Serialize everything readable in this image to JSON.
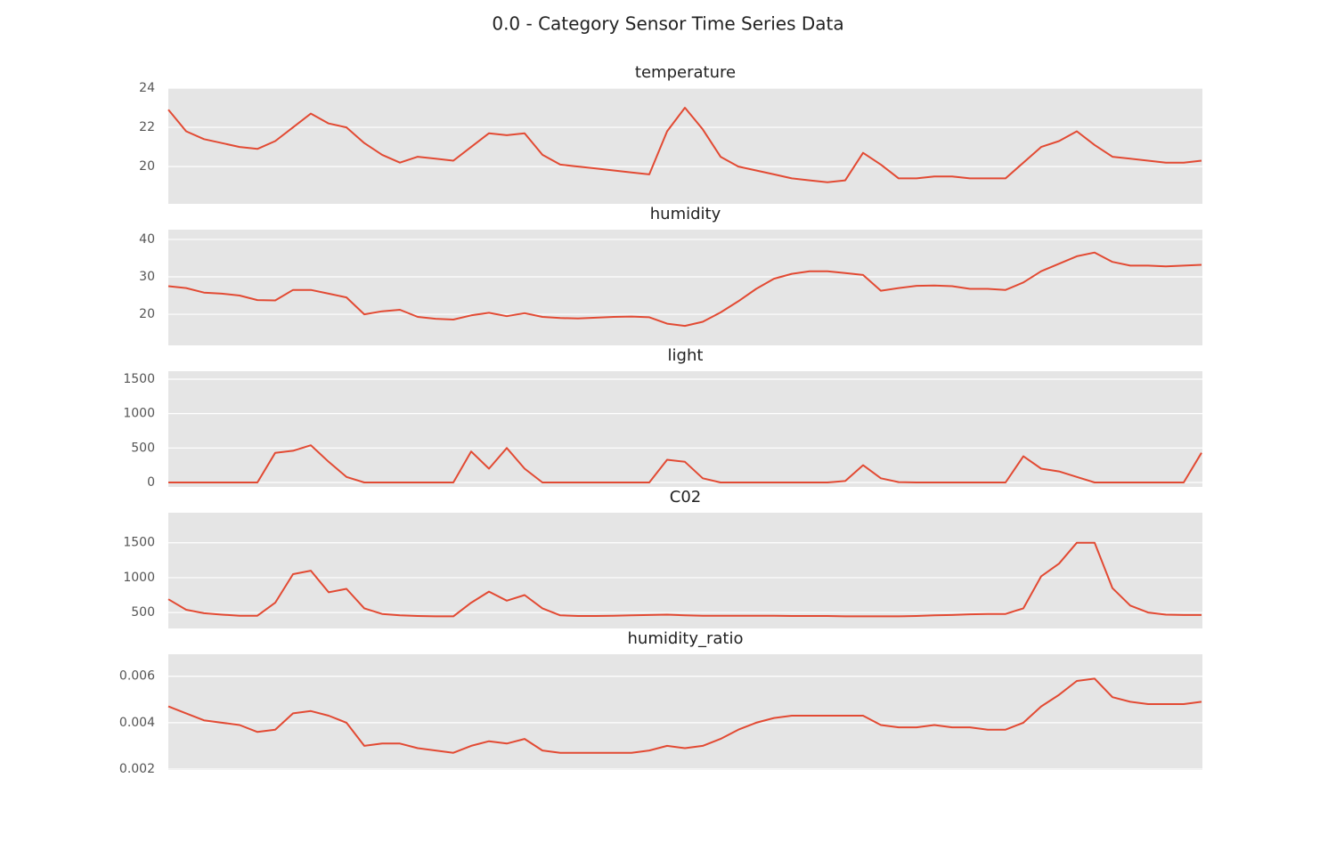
{
  "title": "0.0 - Category Sensor Time Series Data",
  "chart_data": [
    {
      "type": "line",
      "title": "temperature",
      "color": "#e24a33",
      "grid": true,
      "ylim": [
        18.1,
        24.0
      ],
      "yticks": [
        20,
        22,
        24
      ],
      "values": [
        22.9,
        21.8,
        21.4,
        21.2,
        21.0,
        20.9,
        21.3,
        22.0,
        22.7,
        22.2,
        22.0,
        21.2,
        20.6,
        20.2,
        20.5,
        20.4,
        20.3,
        21.0,
        21.7,
        21.6,
        21.7,
        20.6,
        20.1,
        20.0,
        19.9,
        19.8,
        19.7,
        19.6,
        21.8,
        23.0,
        21.9,
        20.5,
        20.0,
        19.8,
        19.6,
        19.4,
        19.3,
        19.2,
        19.3,
        20.7,
        20.1,
        19.4,
        19.4,
        19.5,
        19.5,
        19.4,
        19.4,
        19.4,
        20.2,
        21.0,
        21.3,
        21.8,
        21.1,
        20.5,
        20.4,
        20.3,
        20.2,
        20.2,
        20.3
      ]
    },
    {
      "type": "line",
      "title": "humidity",
      "color": "#e24a33",
      "grid": true,
      "ylim": [
        11.7,
        42.6
      ],
      "yticks": [
        20,
        30,
        40
      ],
      "values": [
        27.5,
        27.0,
        25.8,
        25.5,
        25.0,
        23.8,
        23.7,
        26.5,
        26.5,
        25.5,
        24.5,
        20.0,
        20.8,
        21.2,
        19.3,
        18.8,
        18.6,
        19.7,
        20.4,
        19.5,
        20.3,
        19.3,
        19.0,
        18.9,
        19.1,
        19.3,
        19.4,
        19.2,
        17.5,
        16.9,
        18.0,
        20.5,
        23.5,
        26.8,
        29.5,
        30.8,
        31.5,
        31.5,
        31.0,
        30.5,
        26.3,
        27.0,
        27.6,
        27.7,
        27.5,
        26.8,
        26.8,
        26.5,
        28.5,
        31.5,
        33.5,
        35.5,
        36.5,
        34.0,
        33.0,
        33.0,
        32.8,
        33.0,
        33.2
      ]
    },
    {
      "type": "line",
      "title": "light",
      "color": "#e24a33",
      "grid": true,
      "ylim": [
        -65,
        1616
      ],
      "yticks": [
        0,
        500,
        1000,
        1500
      ],
      "values": [
        0,
        0,
        0,
        0,
        0,
        0,
        430,
        460,
        540,
        300,
        80,
        0,
        0,
        0,
        0,
        0,
        0,
        450,
        200,
        500,
        200,
        0,
        0,
        0,
        0,
        0,
        0,
        0,
        330,
        300,
        60,
        0,
        0,
        0,
        0,
        0,
        0,
        0,
        20,
        250,
        60,
        5,
        0,
        0,
        0,
        0,
        0,
        0,
        380,
        200,
        160,
        80,
        0,
        0,
        0,
        0,
        0,
        0,
        430
      ]
    },
    {
      "type": "line",
      "title": "C02",
      "color": "#e24a33",
      "grid": true,
      "ylim": [
        272,
        1930
      ],
      "yticks": [
        500,
        1000,
        1500
      ],
      "values": [
        690,
        540,
        490,
        470,
        455,
        455,
        640,
        1050,
        1100,
        790,
        840,
        560,
        480,
        460,
        450,
        445,
        445,
        640,
        800,
        670,
        750,
        560,
        460,
        450,
        450,
        455,
        460,
        465,
        470,
        460,
        455,
        455,
        455,
        455,
        455,
        450,
        450,
        450,
        445,
        445,
        445,
        445,
        450,
        460,
        465,
        475,
        480,
        480,
        560,
        1020,
        1200,
        1500,
        1500,
        850,
        600,
        500,
        470,
        465,
        465
      ]
    },
    {
      "type": "line",
      "title": "humidity_ratio",
      "color": "#e24a33",
      "grid": true,
      "ylim": [
        0.00196,
        0.00695
      ],
      "yticks": [
        0.002,
        0.004,
        0.006
      ],
      "values": [
        0.0047,
        0.0044,
        0.0041,
        0.004,
        0.0039,
        0.0036,
        0.0037,
        0.0044,
        0.0045,
        0.0043,
        0.004,
        0.003,
        0.0031,
        0.0031,
        0.0029,
        0.0028,
        0.0027,
        0.003,
        0.0032,
        0.0031,
        0.0033,
        0.0028,
        0.0027,
        0.0027,
        0.0027,
        0.0027,
        0.0027,
        0.0028,
        0.003,
        0.0029,
        0.003,
        0.0033,
        0.0037,
        0.004,
        0.0042,
        0.0043,
        0.0043,
        0.0043,
        0.0043,
        0.0043,
        0.0039,
        0.0038,
        0.0038,
        0.0039,
        0.0038,
        0.0038,
        0.0037,
        0.0037,
        0.004,
        0.0047,
        0.0052,
        0.0058,
        0.0059,
        0.0051,
        0.0049,
        0.0048,
        0.0048,
        0.0048,
        0.0049
      ]
    }
  ]
}
